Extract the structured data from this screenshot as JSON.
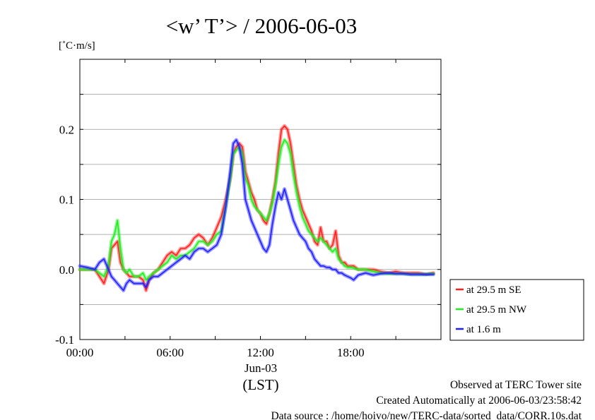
{
  "chart_data": {
    "type": "line",
    "title": "<w’ T’> / 2006-06-03",
    "ylabel": "[˚C·m/s]",
    "ylim": [
      -0.1,
      0.3
    ],
    "xlim": [
      0,
      24
    ],
    "y_ticks": [
      {
        "value": -0.1,
        "label": "-0.1"
      },
      {
        "value": 0.0,
        "label": "0.0"
      },
      {
        "value": 0.1,
        "label": "0.1"
      },
      {
        "value": 0.2,
        "label": "0.2"
      }
    ],
    "x_ticks": [
      {
        "value": 0,
        "label": "00:00"
      },
      {
        "value": 6,
        "label": "06:00"
      },
      {
        "value": 12,
        "label": "12:00"
      },
      {
        "value": 18,
        "label": "18:00"
      }
    ],
    "date_label": "Jun-03",
    "xlabel": "(LST)",
    "grid": true,
    "legend_position": "right",
    "series": [
      {
        "name": "at 29.5 m SE",
        "color": "#ff2020",
        "x": [
          0,
          0.5,
          1,
          1.3,
          1.6,
          1.9,
          2.1,
          2.3,
          2.5,
          2.7,
          2.9,
          3.1,
          3.3,
          3.6,
          3.9,
          4.2,
          4.4,
          4.6,
          4.9,
          5.2,
          5.5,
          5.8,
          6.1,
          6.4,
          6.7,
          7.0,
          7.3,
          7.6,
          7.9,
          8.2,
          8.5,
          8.8,
          9.1,
          9.4,
          9.7,
          10.0,
          10.2,
          10.4,
          10.6,
          10.8,
          11.0,
          11.2,
          11.4,
          11.6,
          11.8,
          12.0,
          12.2,
          12.4,
          12.6,
          12.8,
          13.0,
          13.2,
          13.4,
          13.6,
          13.8,
          14.0,
          14.2,
          14.4,
          14.6,
          14.8,
          15.0,
          15.2,
          15.4,
          15.6,
          15.8,
          16.0,
          16.2,
          16.4,
          16.6,
          16.8,
          17.0,
          17.2,
          17.4,
          17.6,
          17.8,
          18.0,
          18.2,
          18.5,
          19.0,
          19.5,
          20.0,
          20.5,
          21.0,
          21.5,
          22.0,
          22.5,
          23.0,
          23.5
        ],
        "values": [
          0.0,
          0.0,
          0.0,
          -0.01,
          -0.02,
          0.0,
          0.03,
          0.035,
          0.04,
          0.01,
          0.0,
          -0.005,
          -0.01,
          -0.01,
          -0.01,
          -0.015,
          -0.03,
          -0.015,
          -0.005,
          0.0,
          0.01,
          0.02,
          0.025,
          0.02,
          0.03,
          0.03,
          0.035,
          0.045,
          0.05,
          0.045,
          0.035,
          0.045,
          0.06,
          0.075,
          0.1,
          0.13,
          0.165,
          0.175,
          0.18,
          0.175,
          0.14,
          0.125,
          0.11,
          0.1,
          0.085,
          0.08,
          0.07,
          0.065,
          0.08,
          0.1,
          0.125,
          0.165,
          0.2,
          0.205,
          0.2,
          0.18,
          0.15,
          0.12,
          0.1,
          0.085,
          0.075,
          0.065,
          0.055,
          0.04,
          0.035,
          0.06,
          0.04,
          0.04,
          0.03,
          0.035,
          0.055,
          0.02,
          0.01,
          0.01,
          0.005,
          0.005,
          0.005,
          0.0,
          0.0,
          0.0,
          -0.003,
          -0.005,
          -0.003,
          -0.005,
          -0.005,
          -0.005,
          -0.007,
          -0.005
        ]
      },
      {
        "name": "at 29.5 m NW",
        "color": "#20ee20",
        "x": [
          0,
          0.5,
          1,
          1.3,
          1.6,
          1.9,
          2.1,
          2.3,
          2.5,
          2.7,
          2.9,
          3.1,
          3.3,
          3.6,
          3.9,
          4.2,
          4.4,
          4.6,
          4.9,
          5.2,
          5.5,
          5.8,
          6.1,
          6.4,
          6.7,
          7.0,
          7.3,
          7.6,
          7.9,
          8.2,
          8.5,
          8.8,
          9.1,
          9.4,
          9.7,
          10.0,
          10.2,
          10.4,
          10.6,
          10.8,
          11.0,
          11.2,
          11.4,
          11.6,
          11.8,
          12.0,
          12.2,
          12.4,
          12.6,
          12.8,
          13.0,
          13.2,
          13.4,
          13.6,
          13.8,
          14.0,
          14.2,
          14.4,
          14.6,
          14.8,
          15.0,
          15.2,
          15.4,
          15.6,
          15.8,
          16.0,
          16.2,
          16.4,
          16.6,
          16.8,
          17.0,
          17.2,
          17.4,
          17.6,
          17.8,
          18.0,
          18.2,
          18.5,
          19.0,
          19.5,
          20.0,
          20.5,
          21.0,
          21.5,
          22.0,
          22.5,
          23.0,
          23.5
        ],
        "values": [
          0.0,
          0.0,
          0.0,
          -0.005,
          -0.01,
          0.005,
          0.04,
          0.05,
          0.07,
          0.03,
          0.0,
          -0.005,
          0.0,
          -0.01,
          -0.01,
          -0.005,
          -0.015,
          -0.01,
          -0.005,
          0.0,
          0.005,
          0.01,
          0.02,
          0.015,
          0.02,
          0.02,
          0.025,
          0.03,
          0.04,
          0.04,
          0.035,
          0.04,
          0.05,
          0.055,
          0.09,
          0.13,
          0.165,
          0.17,
          0.175,
          0.165,
          0.13,
          0.12,
          0.1,
          0.09,
          0.085,
          0.08,
          0.075,
          0.07,
          0.08,
          0.095,
          0.12,
          0.15,
          0.175,
          0.185,
          0.18,
          0.165,
          0.135,
          0.11,
          0.09,
          0.075,
          0.065,
          0.055,
          0.05,
          0.045,
          0.04,
          0.045,
          0.04,
          0.035,
          0.03,
          0.025,
          0.03,
          0.015,
          0.01,
          0.005,
          0.003,
          0.003,
          0.002,
          0.0,
          0.0,
          -0.003,
          -0.005,
          -0.006,
          -0.006,
          -0.006,
          -0.007,
          -0.007,
          -0.007,
          -0.006
        ]
      },
      {
        "name": "at 1.6 m",
        "color": "#2020ff",
        "x": [
          0,
          0.5,
          1,
          1.3,
          1.6,
          1.9,
          2.1,
          2.3,
          2.5,
          2.7,
          2.9,
          3.1,
          3.3,
          3.6,
          3.9,
          4.2,
          4.4,
          4.6,
          4.9,
          5.2,
          5.5,
          5.8,
          6.1,
          6.4,
          6.7,
          7.0,
          7.3,
          7.6,
          7.9,
          8.2,
          8.5,
          8.8,
          9.1,
          9.4,
          9.7,
          10.0,
          10.2,
          10.4,
          10.6,
          10.8,
          11.0,
          11.2,
          11.4,
          11.6,
          11.8,
          12.0,
          12.2,
          12.4,
          12.6,
          12.8,
          13.0,
          13.2,
          13.4,
          13.6,
          13.8,
          14.0,
          14.2,
          14.4,
          14.6,
          14.8,
          15.0,
          15.2,
          15.4,
          15.6,
          15.8,
          16.0,
          16.2,
          16.4,
          16.6,
          16.8,
          17.0,
          17.2,
          17.4,
          17.6,
          17.8,
          18.0,
          18.2,
          18.5,
          19.0,
          19.5,
          20.0,
          20.5,
          21.0,
          21.5,
          22.0,
          22.5,
          23.0,
          23.5
        ],
        "values": [
          0.005,
          0.003,
          0.0,
          0.01,
          0.015,
          0.0,
          -0.01,
          -0.015,
          -0.02,
          -0.025,
          -0.03,
          -0.02,
          -0.015,
          -0.02,
          -0.02,
          -0.02,
          -0.025,
          -0.015,
          -0.01,
          -0.01,
          -0.005,
          0.0,
          0.005,
          0.01,
          0.015,
          0.02,
          0.015,
          0.025,
          0.03,
          0.03,
          0.025,
          0.03,
          0.035,
          0.05,
          0.09,
          0.14,
          0.18,
          0.185,
          0.175,
          0.15,
          0.1,
          0.085,
          0.07,
          0.06,
          0.05,
          0.04,
          0.03,
          0.025,
          0.035,
          0.065,
          0.09,
          0.11,
          0.1,
          0.115,
          0.1,
          0.085,
          0.07,
          0.06,
          0.05,
          0.045,
          0.04,
          0.03,
          0.025,
          0.015,
          0.01,
          0.005,
          0.005,
          0.003,
          0.003,
          0.0,
          0.0,
          -0.005,
          -0.005,
          -0.008,
          -0.01,
          -0.012,
          -0.015,
          -0.008,
          -0.005,
          -0.008,
          -0.006,
          -0.005,
          -0.006,
          -0.006,
          -0.007,
          -0.007,
          -0.007,
          -0.007
        ]
      }
    ]
  },
  "footer": {
    "site": "Observed at TERC Tower site",
    "created": "Created Automatically at 2006-06-03/23:58:42",
    "source": "Data source : /home/hoivo/new/TERC-data/sorted_data/CORR.10s.dat"
  }
}
